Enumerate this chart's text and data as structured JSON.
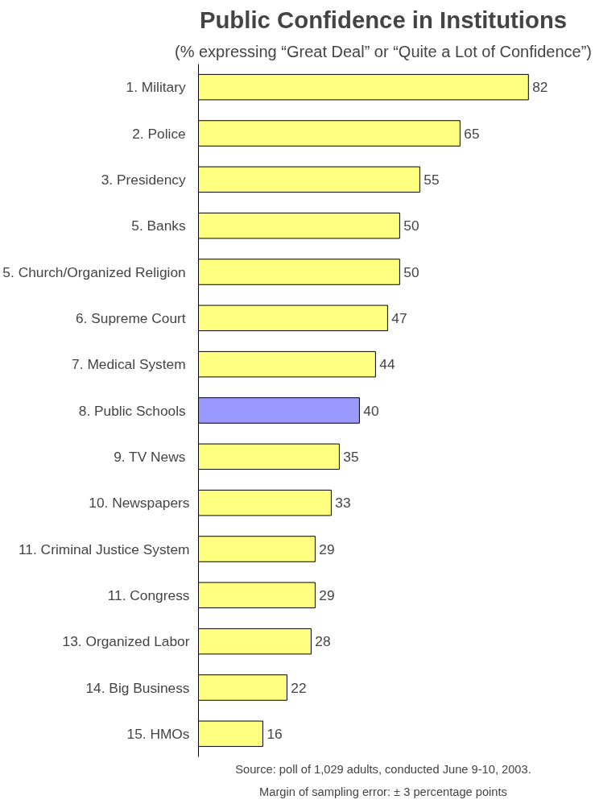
{
  "chart_data": {
    "type": "bar",
    "orientation": "horizontal",
    "title": "Public Confidence in Institutions",
    "subtitle": "(% expressing “Great Deal” or “Quite a Lot of Confidence”)",
    "categories": [
      "1.  Military",
      "2.  Police",
      "3.  Presidency",
      "5.  Banks",
      "5.  Church/Organized Religion",
      "6.  Supreme Court",
      "7.  Medical System",
      "8.  Public Schools",
      "9.  TV News",
      "10. Newspapers",
      "11. Criminal Justice System",
      "11. Congress",
      "13. Organized Labor",
      "14. Big Business",
      "15. HMOs"
    ],
    "values": [
      82,
      65,
      55,
      50,
      50,
      47,
      44,
      40,
      35,
      33,
      29,
      29,
      28,
      22,
      16
    ],
    "colors": [
      "#ffff80",
      "#ffff80",
      "#ffff80",
      "#ffff80",
      "#ffff80",
      "#ffff80",
      "#ffff80",
      "#9999ff",
      "#ffff80",
      "#ffff80",
      "#ffff80",
      "#ffff80",
      "#ffff80",
      "#ffff80",
      "#ffff80"
    ],
    "data_labels": true,
    "grid": false,
    "annotations": [
      "Source: poll of 1,029 adults, conducted June 9-10, 2003.",
      "Margin of sampling error: ± 3 percentage points"
    ]
  }
}
